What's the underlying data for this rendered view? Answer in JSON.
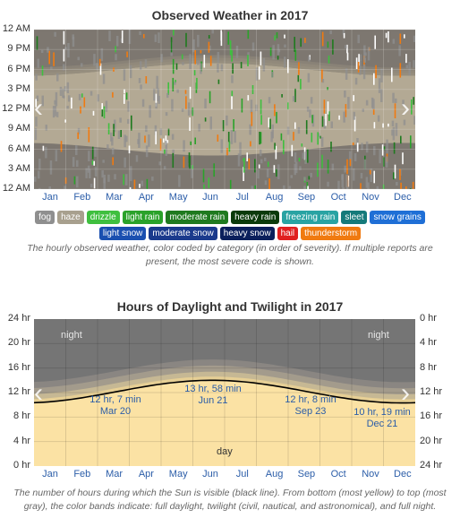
{
  "weather_chart": {
    "title": "Observed Weather in 2017",
    "y_labels": [
      "12 AM",
      "9 PM",
      "6 PM",
      "3 PM",
      "12 PM",
      "9 AM",
      "6 AM",
      "3 AM",
      "12 AM"
    ],
    "months": [
      "Jan",
      "Feb",
      "Mar",
      "Apr",
      "May",
      "Jun",
      "Jul",
      "Aug",
      "Sep",
      "Oct",
      "Nov",
      "Dec"
    ],
    "legend": [
      {
        "label": "fog",
        "color": "#8f8f8f"
      },
      {
        "label": "haze",
        "color": "#a8a08e"
      },
      {
        "label": "drizzle",
        "color": "#3fbf3f"
      },
      {
        "label": "light rain",
        "color": "#2aa22a"
      },
      {
        "label": "moderate rain",
        "color": "#1f7a1f"
      },
      {
        "label": "heavy rain",
        "color": "#0b3a0b"
      },
      {
        "label": "freezing rain",
        "color": "#29a3a3"
      },
      {
        "label": "sleet",
        "color": "#157a7a"
      },
      {
        "label": "snow grains",
        "color": "#1f6fd6"
      },
      {
        "label": "light snow",
        "color": "#1a4fb0"
      },
      {
        "label": "moderate snow",
        "color": "#1a3a8c"
      },
      {
        "label": "heavy snow",
        "color": "#0b1f5c"
      },
      {
        "label": "hail",
        "color": "#e02020"
      },
      {
        "label": "thunderstorm",
        "color": "#f07a10"
      }
    ],
    "caption": "The hourly observed weather, color coded by category (in order of severity). If multiple reports are present, the most severe code is shown."
  },
  "daylight_chart": {
    "title": "Hours of Daylight and Twilight in 2017",
    "y_labels_left": [
      "24 hr",
      "20 hr",
      "16 hr",
      "12 hr",
      "8 hr",
      "4 hr",
      "0 hr"
    ],
    "y_labels_right": [
      "0 hr",
      "4 hr",
      "8 hr",
      "12 hr",
      "16 hr",
      "20 hr",
      "24 hr"
    ],
    "months": [
      "Jan",
      "Feb",
      "Mar",
      "Apr",
      "May",
      "Jun",
      "Jul",
      "Aug",
      "Sep",
      "Oct",
      "Nov",
      "Dec"
    ],
    "night_label": "night",
    "day_label": "day",
    "annotations": [
      {
        "line1": "12 hr, 7 min",
        "line2": "Mar 20"
      },
      {
        "line1": "13 hr, 58 min",
        "line2": "Jun 21"
      },
      {
        "line1": "12 hr, 8 min",
        "line2": "Sep 23"
      },
      {
        "line1": "10 hr, 19 min",
        "line2": "Dec 21"
      }
    ],
    "caption": "The number of hours during which the Sun is visible (black line). From bottom (most yellow) to top (most gray), the color bands indicate: full daylight, twilight (civil, nautical, and astronomical), and full night."
  },
  "chart_data": [
    {
      "type": "heatmap",
      "title": "Observed Weather in 2017",
      "x": [
        "Jan",
        "Feb",
        "Mar",
        "Apr",
        "May",
        "Jun",
        "Jul",
        "Aug",
        "Sep",
        "Oct",
        "Nov",
        "Dec"
      ],
      "y_axis": [
        "12 AM",
        "3 AM",
        "6 AM",
        "9 AM",
        "12 PM",
        "3 PM",
        "6 PM",
        "9 PM",
        "12 AM"
      ],
      "categories": [
        "fog",
        "haze",
        "drizzle",
        "light rain",
        "moderate rain",
        "heavy rain",
        "freezing rain",
        "sleet",
        "snow grains",
        "light snow",
        "moderate snow",
        "heavy snow",
        "hail",
        "thunderstorm"
      ]
    },
    {
      "type": "area",
      "title": "Hours of Daylight and Twilight in 2017",
      "x": [
        "Jan",
        "Feb",
        "Mar",
        "Apr",
        "May",
        "Jun",
        "Jul",
        "Aug",
        "Sep",
        "Oct",
        "Nov",
        "Dec"
      ],
      "ylim": [
        0,
        24
      ],
      "series": [
        {
          "values_by_month_mid": [
            10.5,
            11.3,
            12.0,
            12.9,
            13.6,
            13.95,
            13.8,
            13.2,
            12.4,
            11.5,
            10.7,
            10.35
          ]
        }
      ],
      "points": [
        {
          "x": "Mar 20",
          "y_hours": 12.12
        },
        {
          "x": "Jun 21",
          "y_hours": 13.97
        },
        {
          "x": "Sep 23",
          "y_hours": 12.13
        },
        {
          "x": "Dec 21",
          "y_hours": 10.32
        }
      ]
    }
  ]
}
